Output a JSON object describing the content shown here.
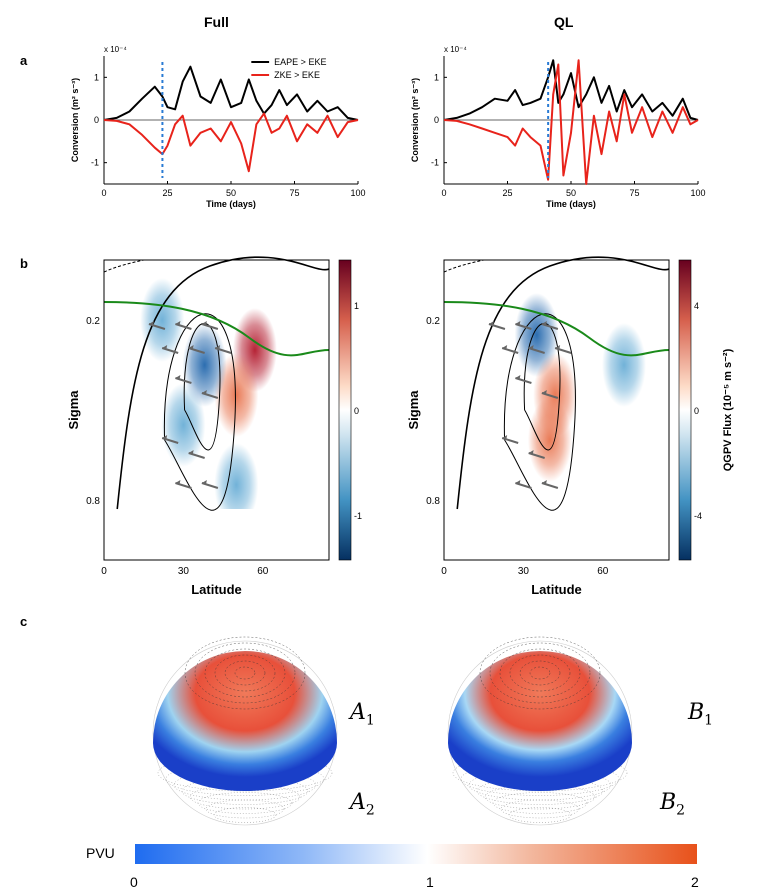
{
  "columns": [
    "Full",
    "QL"
  ],
  "panels": [
    "a",
    "b",
    "c"
  ],
  "chart_data": [
    {
      "type": "line",
      "panel": "a-full",
      "xlabel": "Time (days)",
      "ylabel": "Conversion (m² s⁻³)",
      "exponent": "x 10⁻⁴",
      "xlim": [
        0,
        100
      ],
      "ylim": [
        -1.5,
        1.5
      ],
      "xticks": [
        "0",
        "25",
        "50",
        "75",
        "100"
      ],
      "yticks": [
        "1",
        "0",
        "-1"
      ],
      "marker_day": 23,
      "series": [
        {
          "name": "EAPE > EKE",
          "color": "#000000",
          "x": [
            0,
            5,
            10,
            15,
            20,
            23,
            25,
            28,
            31,
            34,
            38,
            42,
            46,
            50,
            54,
            57,
            60,
            63,
            66,
            69,
            72,
            76,
            80,
            84,
            88,
            92,
            96,
            100
          ],
          "y": [
            0,
            0.05,
            0.2,
            0.5,
            0.78,
            0.55,
            0.3,
            0.25,
            0.9,
            1.25,
            0.55,
            0.4,
            0.95,
            0.3,
            0.4,
            0.95,
            0.45,
            0.15,
            0.35,
            0.7,
            0.35,
            0.6,
            0.2,
            0.45,
            0.2,
            0.3,
            0.05,
            0
          ]
        },
        {
          "name": "ZKE > EKE",
          "color": "#e8231b",
          "x": [
            0,
            5,
            10,
            15,
            20,
            23,
            25,
            28,
            31,
            34,
            38,
            42,
            46,
            50,
            54,
            57,
            60,
            63,
            66,
            69,
            72,
            76,
            80,
            84,
            88,
            92,
            96,
            100
          ],
          "y": [
            0,
            -0.02,
            -0.1,
            -0.35,
            -0.65,
            -0.8,
            -0.6,
            -0.1,
            0.1,
            -0.6,
            -0.3,
            -0.2,
            -0.5,
            -0.05,
            -0.55,
            -1.2,
            -0.1,
            0.15,
            -0.3,
            -0.2,
            0.1,
            -0.5,
            -0.1,
            -0.3,
            0.1,
            -0.4,
            -0.05,
            0
          ]
        }
      ]
    },
    {
      "type": "line",
      "panel": "a-ql",
      "xlabel": "Time (days)",
      "ylabel": "Conversion (m² s⁻³)",
      "exponent": "x 10⁻⁴",
      "xlim": [
        0,
        100
      ],
      "ylim": [
        -1.5,
        1.5
      ],
      "xticks": [
        "0",
        "25",
        "50",
        "75",
        "100"
      ],
      "yticks": [
        "1",
        "0",
        "-1"
      ],
      "marker_day": 41,
      "series": [
        {
          "name": "EAPE > EKE",
          "color": "#000000",
          "x": [
            0,
            5,
            10,
            15,
            20,
            25,
            28,
            31,
            34,
            38,
            41,
            43,
            45,
            47,
            50,
            53,
            56,
            59,
            62,
            65,
            68,
            71,
            74,
            78,
            82,
            86,
            90,
            94,
            97,
            100
          ],
          "y": [
            0,
            0.05,
            0.15,
            0.3,
            0.5,
            0.45,
            0.7,
            0.35,
            0.4,
            0.5,
            1.0,
            1.4,
            0.4,
            0.6,
            1.1,
            0.3,
            0.6,
            1.0,
            0.4,
            0.8,
            0.2,
            0.7,
            0.3,
            0.6,
            0.2,
            0.4,
            0.1,
            0.5,
            0.05,
            0
          ]
        },
        {
          "name": "ZKE > EKE",
          "color": "#e8231b",
          "x": [
            0,
            5,
            10,
            15,
            20,
            25,
            28,
            31,
            34,
            38,
            41,
            43,
            45,
            47,
            50,
            53,
            56,
            59,
            62,
            65,
            68,
            71,
            74,
            78,
            82,
            86,
            90,
            94,
            97,
            100
          ],
          "y": [
            0,
            -0.02,
            -0.1,
            -0.2,
            -0.3,
            -0.4,
            -0.6,
            -0.2,
            -0.4,
            -0.6,
            -1.4,
            0.6,
            1.3,
            -1.3,
            -0.3,
            1.4,
            -1.5,
            0.1,
            -0.8,
            0.2,
            -0.5,
            0.6,
            -0.3,
            0.3,
            -0.4,
            0.2,
            -0.3,
            0.3,
            -0.1,
            0
          ]
        }
      ]
    },
    {
      "type": "heatmap",
      "panel": "b-full",
      "xlabel": "Latitude",
      "ylabel": "Sigma",
      "xlim": [
        0,
        85
      ],
      "ylim": [
        0.0,
        1.0
      ],
      "xticks": [
        "0",
        "30",
        "60"
      ],
      "yticks": [
        "0.2",
        "0.8"
      ],
      "colorbar": {
        "label": "QGPV Flux",
        "ticks": [
          "1",
          "0",
          "-1"
        ]
      },
      "blobs": [
        {
          "lat": 57,
          "sigma": 0.3,
          "value": 1.0
        },
        {
          "lat": 50,
          "sigma": 0.45,
          "value": 0.6
        },
        {
          "lat": 38,
          "sigma": 0.35,
          "value": -0.8
        },
        {
          "lat": 30,
          "sigma": 0.55,
          "value": -0.6
        },
        {
          "lat": 22,
          "sigma": 0.2,
          "value": -0.4
        },
        {
          "lat": 50,
          "sigma": 0.75,
          "value": -0.4
        }
      ]
    },
    {
      "type": "heatmap",
      "panel": "b-ql",
      "xlabel": "Latitude",
      "ylabel": "Sigma",
      "xlim": [
        0,
        85
      ],
      "ylim": [
        0.0,
        1.0
      ],
      "xticks": [
        "0",
        "30",
        "60"
      ],
      "yticks": [
        "0.2",
        "0.8"
      ],
      "colorbar": {
        "label": "QGPV Flux (10⁻⁵ m s⁻²)",
        "ticks": [
          "4",
          "0",
          "-4"
        ]
      },
      "blobs": [
        {
          "lat": 35,
          "sigma": 0.25,
          "value": -0.8
        },
        {
          "lat": 42,
          "sigma": 0.45,
          "value": 0.5
        },
        {
          "lat": 40,
          "sigma": 0.6,
          "value": 0.4
        },
        {
          "lat": 68,
          "sigma": 0.35,
          "value": -0.3
        }
      ]
    }
  ],
  "panel_c": {
    "left_labels": [
      "A",
      "A"
    ],
    "left_subs": [
      "1",
      "2"
    ],
    "right_labels": [
      "B",
      "B"
    ],
    "right_subs": [
      "1",
      "2"
    ],
    "colorbar_label": "PVU",
    "colorbar_ticks": [
      "0",
      "1",
      "2"
    ],
    "colors": {
      "low": "#1f6cf0",
      "mid": "#ffffff",
      "high": "#e8511a"
    }
  }
}
